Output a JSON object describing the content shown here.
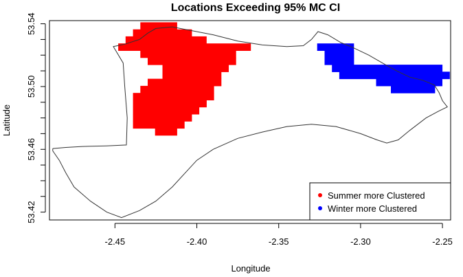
{
  "chart_data": {
    "type": "map",
    "title": "Locations Exceeding 95% MC CI",
    "xlabel": "Longitude",
    "ylabel": "Latitude",
    "xlim": [
      -2.49,
      -2.245
    ],
    "ylim": [
      53.415,
      53.542
    ],
    "x_ticks": [
      -2.45,
      -2.4,
      -2.35,
      -2.3,
      -2.25
    ],
    "x_tick_labels": [
      "-2.45",
      "-2.40",
      "-2.35",
      "-2.30",
      "-2.25"
    ],
    "y_ticks": [
      53.42,
      53.46,
      53.5,
      53.54
    ],
    "y_tick_labels": [
      "53.42",
      "53.46",
      "53.50",
      "53.54"
    ],
    "legend": {
      "position": "bottom-right",
      "entries": [
        {
          "label": "Summer more Clustered",
          "color": "#ff0000"
        },
        {
          "label": "Winter more Clustered",
          "color": "#0000ff"
        }
      ]
    },
    "boundary": [
      [
        -2.488,
        53.4605
      ],
      [
        -2.48,
        53.4612
      ],
      [
        -2.47,
        53.4618
      ],
      [
        -2.455,
        53.4622
      ],
      [
        -2.443,
        53.4628
      ],
      [
        -2.4425,
        53.48
      ],
      [
        -2.444,
        53.5
      ],
      [
        -2.445,
        53.515
      ],
      [
        -2.451,
        53.5255
      ],
      [
        -2.444,
        53.527
      ],
      [
        -2.435,
        53.53
      ],
      [
        -2.43,
        53.534
      ],
      [
        -2.425,
        53.537
      ],
      [
        -2.415,
        53.538
      ],
      [
        -2.405,
        53.536
      ],
      [
        -2.39,
        53.533
      ],
      [
        -2.375,
        53.529
      ],
      [
        -2.36,
        53.5265
      ],
      [
        -2.345,
        53.5255
      ],
      [
        -2.335,
        53.526
      ],
      [
        -2.33,
        53.53
      ],
      [
        -2.326,
        53.535
      ],
      [
        -2.32,
        53.533
      ],
      [
        -2.312,
        53.528
      ],
      [
        -2.305,
        53.525
      ],
      [
        -2.295,
        53.52
      ],
      [
        -2.285,
        53.514
      ],
      [
        -2.278,
        53.51
      ],
      [
        -2.27,
        53.506
      ],
      [
        -2.262,
        53.504
      ],
      [
        -2.255,
        53.501
      ],
      [
        -2.252,
        53.496
      ],
      [
        -2.25,
        53.491
      ],
      [
        -2.247,
        53.487
      ],
      [
        -2.252,
        53.4845
      ],
      [
        -2.26,
        53.48
      ],
      [
        -2.27,
        53.472
      ],
      [
        -2.277,
        53.466
      ],
      [
        -2.284,
        53.464
      ],
      [
        -2.29,
        53.466
      ],
      [
        -2.3,
        53.47
      ],
      [
        -2.315,
        53.4745
      ],
      [
        -2.33,
        53.476
      ],
      [
        -2.345,
        53.4745
      ],
      [
        -2.36,
        53.471
      ],
      [
        -2.375,
        53.467
      ],
      [
        -2.39,
        53.46
      ],
      [
        -2.4,
        53.453
      ],
      [
        -2.408,
        53.444
      ],
      [
        -2.415,
        53.436
      ],
      [
        -2.425,
        53.427
      ],
      [
        -2.435,
        53.421
      ],
      [
        -2.446,
        53.4165
      ],
      [
        -2.455,
        53.42
      ],
      [
        -2.465,
        53.427
      ],
      [
        -2.475,
        53.436
      ],
      [
        -2.48,
        53.445
      ],
      [
        -2.484,
        53.453
      ],
      [
        -2.488,
        53.459
      ],
      [
        -2.488,
        53.4605
      ]
    ],
    "summer_cells": {
      "color": "#ff0000",
      "cell_size": 0.0045,
      "rows": [
        {
          "lat": 53.5387,
          "lon_start": -2.4345,
          "lon_end": -2.412
        },
        {
          "lat": 53.5342,
          "lon_start": -2.439,
          "lon_end": -2.403
        },
        {
          "lat": 53.5297,
          "lon_start": -2.4435,
          "lon_end": -2.394
        },
        {
          "lat": 53.5252,
          "lon_start": -2.448,
          "lon_end": -2.367
        },
        {
          "lat": 53.5207,
          "lon_start": -2.4345,
          "lon_end": -2.376
        },
        {
          "lat": 53.5162,
          "lon_start": -2.43,
          "lon_end": -2.376
        },
        {
          "lat": 53.5117,
          "lon_start": -2.421,
          "lon_end": -2.3805
        },
        {
          "lat": 53.5072,
          "lon_start": -2.421,
          "lon_end": -2.385
        },
        {
          "lat": 53.5027,
          "lon_start": -2.43,
          "lon_end": -2.385
        },
        {
          "lat": 53.4982,
          "lon_start": -2.4345,
          "lon_end": -2.3895
        },
        {
          "lat": 53.4937,
          "lon_start": -2.439,
          "lon_end": -2.3895
        },
        {
          "lat": 53.4892,
          "lon_start": -2.439,
          "lon_end": -2.394
        },
        {
          "lat": 53.4847,
          "lon_start": -2.439,
          "lon_end": -2.3985
        },
        {
          "lat": 53.4802,
          "lon_start": -2.439,
          "lon_end": -2.403
        },
        {
          "lat": 53.4757,
          "lon_start": -2.439,
          "lon_end": -2.4075
        },
        {
          "lat": 53.4712,
          "lon_start": -2.4255,
          "lon_end": -2.412
        }
      ]
    },
    "winter_cells": {
      "color": "#0000ff",
      "cell_size": 0.0045,
      "rows": [
        {
          "lat": 53.5252,
          "lon_start": -2.3265,
          "lon_end": -2.304
        },
        {
          "lat": 53.5207,
          "lon_start": -2.322,
          "lon_end": -2.304
        },
        {
          "lat": 53.5162,
          "lon_start": -2.322,
          "lon_end": -2.304
        },
        {
          "lat": 53.5117,
          "lon_start": -2.3175,
          "lon_end": -2.25
        },
        {
          "lat": 53.5072,
          "lon_start": -2.313,
          "lon_end": -2.2455
        },
        {
          "lat": 53.5027,
          "lon_start": -2.2905,
          "lon_end": -2.25
        },
        {
          "lat": 53.4982,
          "lon_start": -2.2815,
          "lon_end": -2.2545
        }
      ]
    }
  }
}
